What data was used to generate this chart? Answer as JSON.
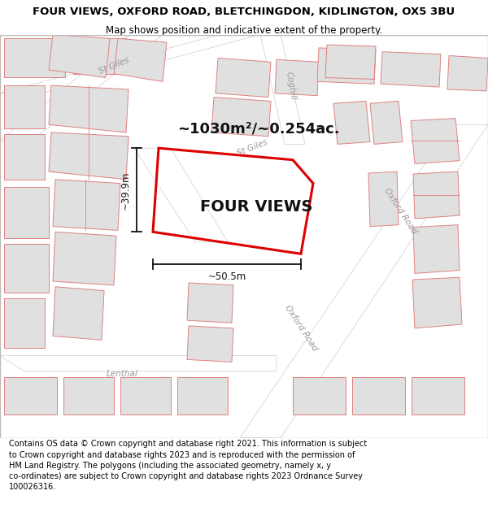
{
  "title_line1": "FOUR VIEWS, OXFORD ROAD, BLETCHINGDON, KIDLINGTON, OX5 3BU",
  "title_line2": "Map shows position and indicative extent of the property.",
  "area_label": "~1030m²/~0.254ac.",
  "property_label": "FOUR VIEWS",
  "dim_width": "~50.5m",
  "dim_height": "~39.9m",
  "footer_text": "Contains OS data © Crown copyright and database right 2021. This information is subject\nto Crown copyright and database rights 2023 and is reproduced with the permission of\nHM Land Registry. The polygons (including the associated geometry, namely x, y\nco-ordinates) are subject to Crown copyright and database rights 2023 Ordnance Survey\n100026316.",
  "map_bg": "#f8f8f8",
  "building_fill": "#e0e0e0",
  "building_edge": "#e08080",
  "road_fill": "#ffffff",
  "road_edge": "#c0c0c0",
  "plot_color": "#dd0000",
  "dim_color": "#111111",
  "road_label_color": "#999999",
  "title_fontsize": 9.5,
  "subtitle_fontsize": 8.5,
  "footer_fontsize": 7.0,
  "area_fontsize": 13,
  "prop_fontsize": 14,
  "dim_fontsize": 8.5,
  "road_fontsize": 7.5
}
